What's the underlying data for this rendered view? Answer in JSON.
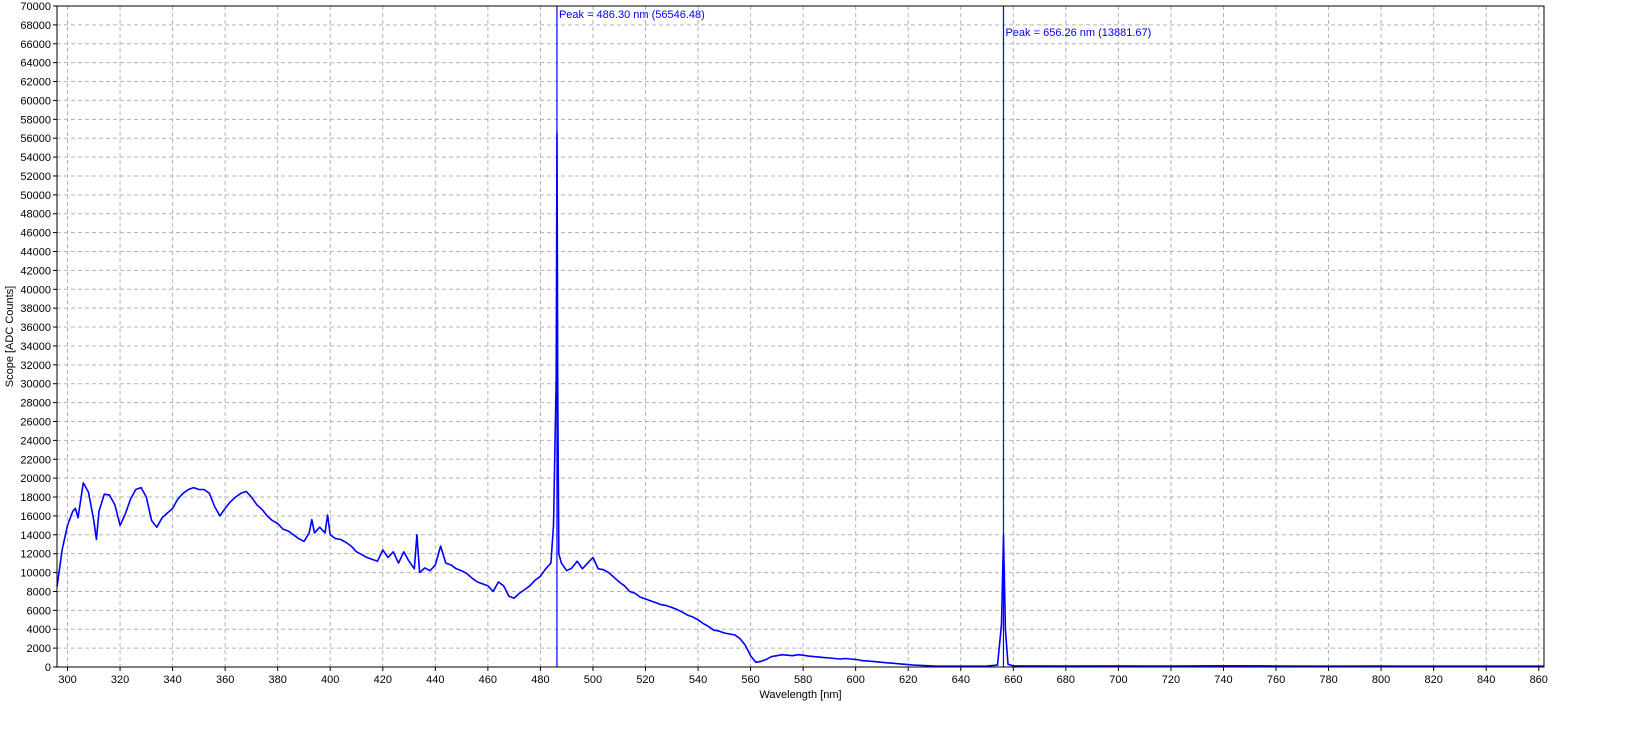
{
  "chart_data": {
    "type": "line",
    "title": "",
    "xlabel": "Wavelength [nm]",
    "ylabel": "Scope [ADC Counts]",
    "xlim": [
      296,
      862
    ],
    "ylim": [
      0,
      70000
    ],
    "x_ticks": [
      300,
      320,
      340,
      360,
      380,
      400,
      420,
      440,
      460,
      480,
      500,
      520,
      540,
      560,
      580,
      600,
      620,
      640,
      660,
      680,
      700,
      720,
      740,
      760,
      780,
      800,
      820,
      840,
      860
    ],
    "y_ticks": [
      0,
      2000,
      4000,
      6000,
      8000,
      10000,
      12000,
      14000,
      16000,
      18000,
      20000,
      22000,
      24000,
      26000,
      28000,
      30000,
      32000,
      34000,
      36000,
      38000,
      40000,
      42000,
      44000,
      46000,
      48000,
      50000,
      52000,
      54000,
      56000,
      58000,
      60000,
      62000,
      64000,
      66000,
      68000,
      70000
    ],
    "grid": true,
    "line_color": "#0000ff",
    "series": [
      {
        "values": [
          [
            296,
            8500
          ],
          [
            298,
            12500
          ],
          [
            300,
            15000
          ],
          [
            302,
            16500
          ],
          [
            303,
            16800
          ],
          [
            304,
            15800
          ],
          [
            306,
            19500
          ],
          [
            308,
            18500
          ],
          [
            310,
            15500
          ],
          [
            311,
            13500
          ],
          [
            312,
            16500
          ],
          [
            314,
            18300
          ],
          [
            316,
            18200
          ],
          [
            318,
            17200
          ],
          [
            320,
            15000
          ],
          [
            322,
            16200
          ],
          [
            324,
            17800
          ],
          [
            326,
            18800
          ],
          [
            328,
            19000
          ],
          [
            330,
            18000
          ],
          [
            332,
            15500
          ],
          [
            334,
            14800
          ],
          [
            336,
            15800
          ],
          [
            338,
            16300
          ],
          [
            340,
            16800
          ],
          [
            342,
            17800
          ],
          [
            344,
            18400
          ],
          [
            346,
            18800
          ],
          [
            348,
            19000
          ],
          [
            350,
            18800
          ],
          [
            352,
            18800
          ],
          [
            354,
            18400
          ],
          [
            356,
            17000
          ],
          [
            358,
            16000
          ],
          [
            360,
            16800
          ],
          [
            362,
            17500
          ],
          [
            364,
            18000
          ],
          [
            366,
            18400
          ],
          [
            368,
            18600
          ],
          [
            370,
            18000
          ],
          [
            372,
            17200
          ],
          [
            374,
            16700
          ],
          [
            376,
            16000
          ],
          [
            378,
            15500
          ],
          [
            380,
            15200
          ],
          [
            382,
            14600
          ],
          [
            384,
            14400
          ],
          [
            386,
            14000
          ],
          [
            388,
            13600
          ],
          [
            390,
            13300
          ],
          [
            392,
            14200
          ],
          [
            393,
            15600
          ],
          [
            394,
            14200
          ],
          [
            396,
            14800
          ],
          [
            398,
            14200
          ],
          [
            399,
            16100
          ],
          [
            400,
            14000
          ],
          [
            402,
            13600
          ],
          [
            404,
            13500
          ],
          [
            406,
            13200
          ],
          [
            408,
            12800
          ],
          [
            410,
            12200
          ],
          [
            412,
            11900
          ],
          [
            414,
            11600
          ],
          [
            416,
            11400
          ],
          [
            418,
            11200
          ],
          [
            420,
            12400
          ],
          [
            422,
            11600
          ],
          [
            424,
            12200
          ],
          [
            426,
            11000
          ],
          [
            428,
            12200
          ],
          [
            430,
            11200
          ],
          [
            432,
            10400
          ],
          [
            433,
            14000
          ],
          [
            434,
            10000
          ],
          [
            436,
            10500
          ],
          [
            438,
            10200
          ],
          [
            440,
            10800
          ],
          [
            442,
            12800
          ],
          [
            444,
            11000
          ],
          [
            446,
            10800
          ],
          [
            448,
            10400
          ],
          [
            450,
            10200
          ],
          [
            452,
            9900
          ],
          [
            454,
            9400
          ],
          [
            456,
            9000
          ],
          [
            458,
            8800
          ],
          [
            460,
            8600
          ],
          [
            462,
            8000
          ],
          [
            464,
            9000
          ],
          [
            466,
            8600
          ],
          [
            468,
            7500
          ],
          [
            470,
            7300
          ],
          [
            472,
            7800
          ],
          [
            474,
            8200
          ],
          [
            476,
            8600
          ],
          [
            478,
            9200
          ],
          [
            480,
            9600
          ],
          [
            482,
            10400
          ],
          [
            484,
            11000
          ],
          [
            485,
            15000
          ],
          [
            486,
            30500
          ],
          [
            486.3,
            56546.48
          ],
          [
            486.6,
            30000
          ],
          [
            487,
            12000
          ],
          [
            488,
            11000
          ],
          [
            490,
            10200
          ],
          [
            492,
            10500
          ],
          [
            494,
            11200
          ],
          [
            496,
            10400
          ],
          [
            498,
            11000
          ],
          [
            500,
            11600
          ],
          [
            502,
            10400
          ],
          [
            504,
            10300
          ],
          [
            506,
            10000
          ],
          [
            508,
            9500
          ],
          [
            510,
            9000
          ],
          [
            512,
            8600
          ],
          [
            514,
            8000
          ],
          [
            516,
            7800
          ],
          [
            518,
            7400
          ],
          [
            520,
            7200
          ],
          [
            522,
            7000
          ],
          [
            524,
            6800
          ],
          [
            526,
            6600
          ],
          [
            528,
            6500
          ],
          [
            530,
            6300
          ],
          [
            532,
            6100
          ],
          [
            534,
            5800
          ],
          [
            536,
            5500
          ],
          [
            538,
            5300
          ],
          [
            540,
            5000
          ],
          [
            542,
            4600
          ],
          [
            544,
            4300
          ],
          [
            546,
            3900
          ],
          [
            548,
            3800
          ],
          [
            550,
            3600
          ],
          [
            552,
            3500
          ],
          [
            554,
            3400
          ],
          [
            556,
            3000
          ],
          [
            558,
            2300
          ],
          [
            560,
            1200
          ],
          [
            562,
            500
          ],
          [
            564,
            600
          ],
          [
            566,
            800
          ],
          [
            568,
            1100
          ],
          [
            570,
            1200
          ],
          [
            572,
            1300
          ],
          [
            574,
            1250
          ],
          [
            576,
            1200
          ],
          [
            578,
            1300
          ],
          [
            580,
            1250
          ],
          [
            582,
            1150
          ],
          [
            584,
            1100
          ],
          [
            586,
            1050
          ],
          [
            588,
            1000
          ],
          [
            590,
            950
          ],
          [
            592,
            900
          ],
          [
            594,
            850
          ],
          [
            596,
            900
          ],
          [
            598,
            850
          ],
          [
            600,
            800
          ],
          [
            602,
            700
          ],
          [
            604,
            650
          ],
          [
            606,
            600
          ],
          [
            608,
            550
          ],
          [
            610,
            500
          ],
          [
            612,
            450
          ],
          [
            614,
            400
          ],
          [
            616,
            350
          ],
          [
            618,
            300
          ],
          [
            620,
            250
          ],
          [
            622,
            200
          ],
          [
            626,
            150
          ],
          [
            630,
            100
          ],
          [
            640,
            80
          ],
          [
            650,
            100
          ],
          [
            654,
            200
          ],
          [
            655.5,
            4500
          ],
          [
            656.26,
            13881.67
          ],
          [
            657,
            4000
          ],
          [
            658,
            300
          ],
          [
            660,
            120
          ],
          [
            680,
            100
          ],
          [
            700,
            120
          ],
          [
            720,
            100
          ],
          [
            740,
            130
          ],
          [
            760,
            110
          ],
          [
            780,
            90
          ],
          [
            800,
            100
          ],
          [
            820,
            80
          ],
          [
            840,
            90
          ],
          [
            860,
            80
          ],
          [
            862,
            80
          ]
        ]
      }
    ],
    "annotations": [
      {
        "x": 486.3,
        "text": "Peak = 486.30 nm (56546.48)"
      },
      {
        "x": 656.26,
        "text": "Peak = 656.26 nm (13881.67)"
      }
    ]
  }
}
